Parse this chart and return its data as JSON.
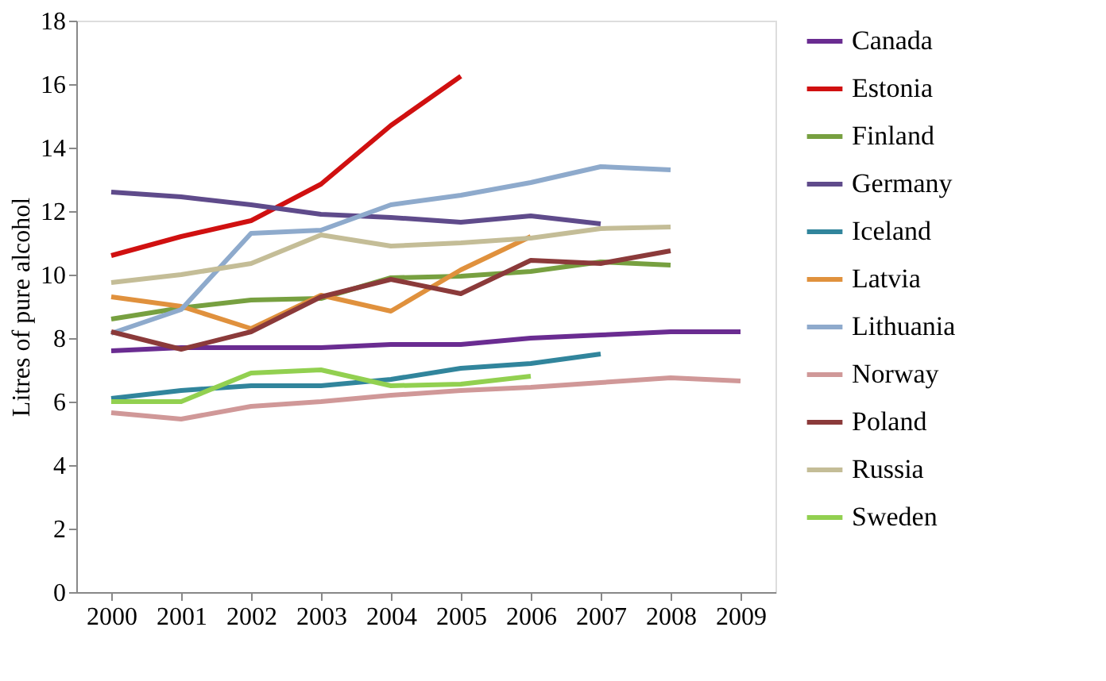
{
  "chart_data": {
    "type": "line",
    "ylabel": "Litres of pure alcohol",
    "categories": [
      "2000",
      "2001",
      "2002",
      "2003",
      "2004",
      "2005",
      "2006",
      "2007",
      "2008",
      "2009"
    ],
    "ylim": [
      0,
      18
    ],
    "yticks": [
      0,
      2,
      4,
      6,
      8,
      10,
      12,
      14,
      16,
      18
    ],
    "grid": false,
    "legend": "right",
    "marker": "none",
    "line_style": "solid",
    "series": [
      {
        "name": "Canada",
        "color": "#6a2c91",
        "values": [
          7.6,
          7.7,
          7.7,
          7.7,
          7.8,
          7.8,
          8.0,
          8.1,
          8.2,
          8.2
        ]
      },
      {
        "name": "Estonia",
        "color": "#d01010",
        "values": [
          10.6,
          11.2,
          11.7,
          12.85,
          14.7,
          16.25,
          null,
          null,
          null,
          null
        ]
      },
      {
        "name": "Finland",
        "color": "#77a040",
        "values": [
          8.6,
          8.95,
          9.2,
          9.25,
          9.9,
          9.95,
          10.1,
          10.4,
          10.3,
          null
        ]
      },
      {
        "name": "Germany",
        "color": "#5f4b8b",
        "values": [
          12.6,
          12.45,
          12.2,
          11.9,
          11.8,
          11.65,
          11.85,
          11.6,
          null,
          null
        ]
      },
      {
        "name": "Iceland",
        "color": "#31859c",
        "values": [
          6.1,
          6.35,
          6.5,
          6.5,
          6.7,
          7.05,
          7.2,
          7.5,
          null,
          null
        ]
      },
      {
        "name": "Latvia",
        "color": "#e0913d",
        "values": [
          9.3,
          9.0,
          8.3,
          9.35,
          8.85,
          10.15,
          11.2,
          null,
          null,
          null
        ]
      },
      {
        "name": "Lithuania",
        "color": "#8eaacc",
        "values": [
          8.15,
          8.9,
          11.3,
          11.4,
          12.2,
          12.5,
          12.9,
          13.4,
          13.3,
          null
        ]
      },
      {
        "name": "Norway",
        "color": "#d09898",
        "values": [
          5.65,
          5.45,
          5.85,
          6.0,
          6.2,
          6.35,
          6.45,
          6.6,
          6.75,
          6.65
        ]
      },
      {
        "name": "Poland",
        "color": "#8b3a3a",
        "values": [
          8.2,
          7.65,
          8.2,
          9.3,
          9.85,
          9.4,
          10.45,
          10.35,
          10.75,
          null
        ]
      },
      {
        "name": "Russia",
        "color": "#c4bd97",
        "values": [
          9.75,
          10.0,
          10.35,
          11.25,
          10.9,
          11.0,
          11.15,
          11.45,
          11.5,
          null
        ]
      },
      {
        "name": "Sweden",
        "color": "#92d050",
        "values": [
          6.0,
          6.0,
          6.9,
          7.0,
          6.5,
          6.55,
          6.8,
          null,
          null,
          null
        ]
      }
    ]
  }
}
